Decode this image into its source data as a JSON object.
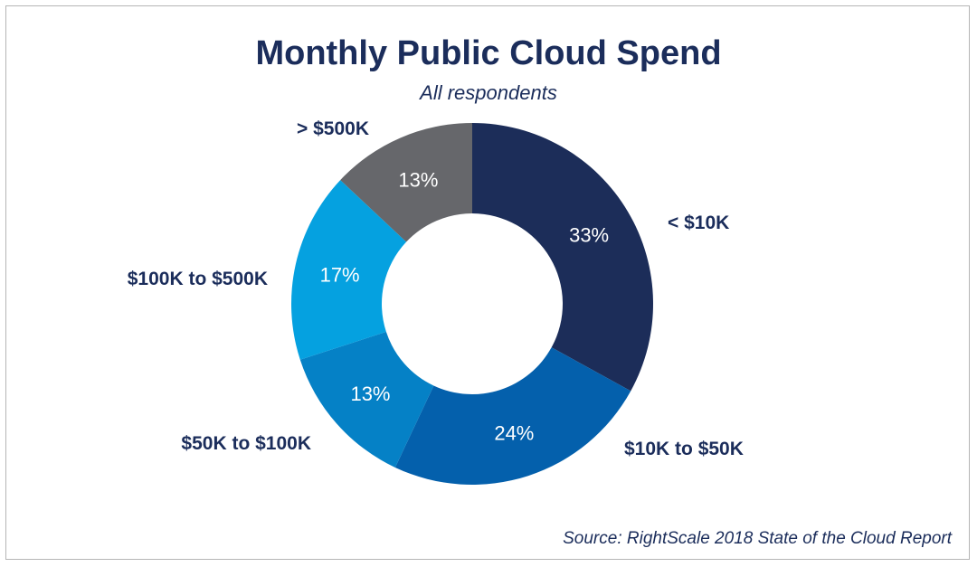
{
  "chart_data": {
    "type": "pie",
    "title": "Monthly Public Cloud Spend",
    "subtitle": "All respondents",
    "source": "Source: RightScale 2018 State of the Cloud Report",
    "slices": [
      {
        "label": "< $10K",
        "value": 33,
        "display": "33%",
        "color": "#1c2d59"
      },
      {
        "label": "$10K to $50K",
        "value": 24,
        "display": "24%",
        "color": "#0460ac"
      },
      {
        "label": "$50K to $100K",
        "value": 13,
        "display": "13%",
        "color": "#0581c6"
      },
      {
        "label": "$100K to $500K",
        "value": 17,
        "display": "17%",
        "color": "#05a1e0"
      },
      {
        "label": "> $500K",
        "value": 13,
        "display": "13%",
        "color": "#66676b"
      }
    ]
  }
}
